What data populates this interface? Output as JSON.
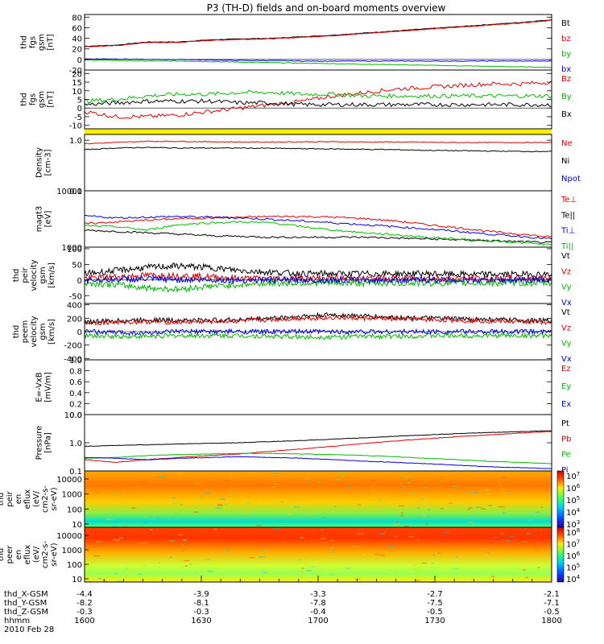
{
  "title": "P3 (TH-D) fields and on-board moments overview",
  "chart_data": {
    "type": "line",
    "title": "P3 (TH-D) fields and on-board moments overview",
    "date_label": "2010 Feb 28",
    "x_axis": {
      "tick_values": [
        "1600",
        "1630",
        "1700",
        "1730",
        "1800"
      ],
      "rows": [
        {
          "label": "thd_X-GSM",
          "values": [
            "-4.4",
            "-3.9",
            "-3.3",
            "-2.7",
            "-2.1"
          ]
        },
        {
          "label": "thd_Y-GSM",
          "values": [
            "-8.2",
            "-8.1",
            "-7.8",
            "-7.5",
            "-7.1"
          ]
        },
        {
          "label": "thd_Z-GSM",
          "values": [
            "-0.3",
            "-0.3",
            "-0.4",
            "-0.5",
            "-0.5"
          ]
        },
        {
          "label": "hhmm",
          "values": [
            "1600",
            "1630",
            "1700",
            "1730",
            "1800"
          ]
        }
      ]
    },
    "panels": [
      {
        "id": "fgs-gsm",
        "ylabel": [
          "thd",
          "fgs",
          "gsm",
          "[nT]"
        ],
        "ylim": [
          -20,
          85
        ],
        "yticks": [
          "80",
          "60",
          "40",
          "20",
          "0",
          "-20"
        ],
        "series": [
          {
            "name": "Bt",
            "color": "#000000",
            "values": [
              25,
              27,
              33,
              33,
              37,
              39,
              40,
              43,
              46,
              50,
              54,
              58,
              62,
              66,
              70,
              75
            ]
          },
          {
            "name": "bz",
            "color": "#dd0000",
            "values": [
              24,
              26,
              32,
              32,
              36,
              38,
              39,
              42,
              45,
              49,
              53,
              57,
              61,
              65,
              69,
              74
            ]
          },
          {
            "name": "by",
            "color": "#00bb00",
            "values": [
              -1,
              -2,
              -3,
              -3,
              -4,
              -5,
              -6,
              -7,
              -8,
              -9,
              -10,
              -11,
              -12,
              -13,
              -14,
              -15
            ]
          },
          {
            "name": "bx",
            "color": "#0000dd",
            "values": [
              1,
              1,
              0,
              0,
              -1,
              -2,
              -2,
              -3,
              -3,
              -3,
              -3,
              -3,
              -3,
              -3,
              -3,
              -3
            ]
          }
        ]
      },
      {
        "id": "fgs-fac",
        "ylabel": [
          "thd",
          "fgs",
          "gsm",
          "[nT]"
        ],
        "ylim": [
          -12,
          22
        ],
        "yticks": [
          "20",
          "15",
          "10",
          "5",
          "0",
          "-5",
          "-10"
        ],
        "series": [
          {
            "name": "Bz",
            "color": "#dd0000",
            "values": [
              -2,
              -5,
              -5,
              -4,
              -2,
              0,
              2,
              4,
              7,
              9,
              11,
              12,
              13,
              14,
              14,
              15
            ]
          },
          {
            "name": "By",
            "color": "#00bb00",
            "values": [
              4,
              5,
              7,
              8,
              8,
              9,
              9,
              8,
              8,
              7,
              7,
              7,
              7,
              7,
              7,
              7
            ]
          },
          {
            "name": "Bx",
            "color": "#000000",
            "values": [
              2,
              3,
              4,
              4,
              4,
              3,
              3,
              2,
              2,
              2,
              2,
              2,
              2,
              2,
              2,
              2
            ]
          }
        ]
      },
      {
        "id": "density",
        "ylabel": [
          "Density",
          "[cm-3]"
        ],
        "scale": "log",
        "ylim": [
          0.1,
          1.3
        ],
        "yticks": [
          "1.0",
          "0.1"
        ],
        "series": [
          {
            "name": "Ne",
            "color": "#dd0000",
            "values": [
              0.85,
              0.9,
              0.95,
              0.95,
              0.93,
              0.92,
              0.92,
              0.93,
              0.93,
              0.92,
              0.92,
              0.91,
              0.9,
              0.9,
              0.9,
              0.9
            ]
          },
          {
            "name": "Ni",
            "color": "#000000",
            "values": [
              0.65,
              0.7,
              0.72,
              0.7,
              0.7,
              0.7,
              0.69,
              0.68,
              0.67,
              0.66,
              0.65,
              0.63,
              0.62,
              0.61,
              0.6,
              0.6
            ]
          },
          {
            "name": "Npot",
            "color": "#0000dd",
            "values": []
          }
        ]
      },
      {
        "id": "temperature",
        "ylabel": [
          "magt3",
          "[eV]"
        ],
        "scale": "log",
        "ylim": [
          1000,
          10000
        ],
        "yticks": [
          "10000",
          "1000"
        ],
        "series": [
          {
            "name": "Te⊥",
            "color": "#dd0000",
            "values": [
              2600,
              2800,
              3000,
              3200,
              3300,
              3400,
              3500,
              3500,
              3400,
              3200,
              2900,
              2500,
              2200,
              1900,
              1700,
              1500
            ]
          },
          {
            "name": "Te||",
            "color": "#000000",
            "values": [
              2000,
              1900,
              1800,
              1700,
              1600,
              1550,
              1500,
              1500,
              1500,
              1500,
              1450,
              1400,
              1350,
              1300,
              1250,
              1200
            ]
          },
          {
            "name": "Ti⊥",
            "color": "#0000dd",
            "values": [
              3600,
              3300,
              3400,
              3500,
              3400,
              3300,
              3100,
              2900,
              2700,
              2500,
              2300,
              2100,
              1900,
              1700,
              1550,
              1400
            ]
          },
          {
            "name": "Ti||",
            "color": "#00bb00",
            "values": [
              2400,
              2300,
              2000,
              2500,
              2700,
              2800,
              2700,
              2300,
              2000,
              1800,
              1650,
              1500,
              1400,
              1300,
              1200,
              1100
            ]
          }
        ]
      },
      {
        "id": "peir-velocity",
        "ylabel": [
          "thd",
          "peir",
          "velocity",
          "gsm",
          "[km/s]"
        ],
        "ylim": [
          -75,
          105
        ],
        "yticks": [
          "100",
          "50",
          "0",
          "-50"
        ],
        "series": [
          {
            "name": "Vt",
            "color": "#000000",
            "values": [
              20,
              30,
              40,
              45,
              40,
              30,
              25,
              20,
              20,
              20,
              20,
              20,
              18,
              18,
              18,
              18
            ]
          },
          {
            "name": "Vz",
            "color": "#dd0000",
            "values": [
              5,
              10,
              15,
              15,
              10,
              5,
              5,
              5,
              5,
              5,
              5,
              5,
              5,
              5,
              5,
              5
            ]
          },
          {
            "name": "Vy",
            "color": "#00bb00",
            "values": [
              -10,
              -15,
              -25,
              -30,
              -20,
              -15,
              -10,
              -10,
              -10,
              -10,
              -10,
              -10,
              -10,
              -10,
              -10,
              -10
            ]
          },
          {
            "name": "Vx",
            "color": "#0000dd",
            "values": [
              0,
              2,
              3,
              2,
              0,
              0,
              0,
              0,
              0,
              0,
              0,
              0,
              0,
              0,
              0,
              0
            ]
          }
        ]
      },
      {
        "id": "peem-velocity",
        "ylabel": [
          "thd",
          "peem",
          "velocity",
          "gsm",
          "[km/s]"
        ],
        "ylim": [
          -420,
          420
        ],
        "yticks": [
          "400",
          "200",
          "0",
          "-200",
          "-400"
        ],
        "series": [
          {
            "name": "Vt",
            "color": "#000000",
            "values": [
              150,
              160,
              180,
              170,
              170,
              180,
              200,
              230,
              250,
              230,
              210,
              200,
              190,
              180,
              170,
              160
            ]
          },
          {
            "name": "Vz",
            "color": "#dd0000",
            "values": [
              130,
              140,
              150,
              140,
              150,
              160,
              180,
              200,
              210,
              200,
              190,
              180,
              170,
              160,
              150,
              140
            ]
          },
          {
            "name": "Vy",
            "color": "#00bb00",
            "values": [
              -60,
              -70,
              -70,
              -60,
              -60,
              -60,
              -70,
              -80,
              -80,
              -70,
              -70,
              -60,
              -60,
              -60,
              -60,
              -60
            ]
          },
          {
            "name": "Vx",
            "color": "#0000dd",
            "values": [
              0,
              -10,
              -20,
              0,
              0,
              0,
              0,
              0,
              0,
              0,
              0,
              0,
              0,
              0,
              0,
              0
            ]
          }
        ]
      },
      {
        "id": "exb",
        "ylabel": [
          "E=-VxB",
          "[mV/m]"
        ],
        "ylim": [
          0,
          1.0
        ],
        "yticks": [
          "1.0",
          "0.8",
          "0.6",
          "0.4",
          "0.2",
          "0.0"
        ],
        "series": [
          {
            "name": "Ez",
            "color": "#dd0000",
            "values": []
          },
          {
            "name": "Ey",
            "color": "#00bb00",
            "values": []
          },
          {
            "name": "Ex",
            "color": "#0000dd",
            "values": []
          }
        ]
      },
      {
        "id": "pressure",
        "ylabel": [
          "Pressure",
          "[nPa]"
        ],
        "scale": "log",
        "ylim": [
          0.1,
          10
        ],
        "yticks": [
          "10.0",
          "1.0",
          "0.1"
        ],
        "series": [
          {
            "name": "Pt",
            "color": "#000000",
            "values": [
              0.75,
              0.8,
              0.85,
              0.9,
              0.95,
              1.0,
              1.1,
              1.2,
              1.35,
              1.5,
              1.7,
              1.9,
              2.1,
              2.3,
              2.5,
              2.7
            ]
          },
          {
            "name": "Pb",
            "color": "#dd0000",
            "values": [
              0.25,
              0.2,
              0.25,
              0.3,
              0.35,
              0.4,
              0.5,
              0.6,
              0.75,
              0.95,
              1.15,
              1.4,
              1.65,
              1.9,
              2.2,
              2.5
            ]
          },
          {
            "name": "Pe",
            "color": "#00bb00",
            "values": [
              0.28,
              0.3,
              0.35,
              0.38,
              0.4,
              0.42,
              0.42,
              0.4,
              0.38,
              0.35,
              0.32,
              0.28,
              0.25,
              0.22,
              0.2,
              0.18
            ]
          },
          {
            "name": "Pi",
            "color": "#0000dd",
            "values": [
              0.3,
              0.28,
              0.25,
              0.28,
              0.3,
              0.32,
              0.3,
              0.28,
              0.25,
              0.22,
              0.2,
              0.18,
              0.16,
              0.14,
              0.13,
              0.12
            ]
          }
        ]
      },
      {
        "id": "peir-spectrogram",
        "type": "heatmap",
        "ylabel": [
          "thd",
          "peir",
          "en",
          "eflux",
          "(eV/",
          "cm2-s-",
          "sr-eV)"
        ],
        "yticks": [
          "10000",
          "1000",
          "100",
          "10"
        ],
        "colorbar_ticks": [
          "10^7",
          "10^6",
          "10^5",
          "10^4",
          "10^3"
        ]
      },
      {
        "id": "peer-spectrogram",
        "type": "heatmap",
        "ylabel": [
          "thd",
          "peer",
          "en",
          "eflux",
          "(eV/",
          "cm2-s-",
          "sr-eV)"
        ],
        "yticks": [
          "10000",
          "1000",
          "100",
          "10"
        ],
        "colorbar_ticks": [
          "10^8",
          "10^7",
          "10^6",
          "10^5",
          "10^4"
        ]
      }
    ]
  }
}
